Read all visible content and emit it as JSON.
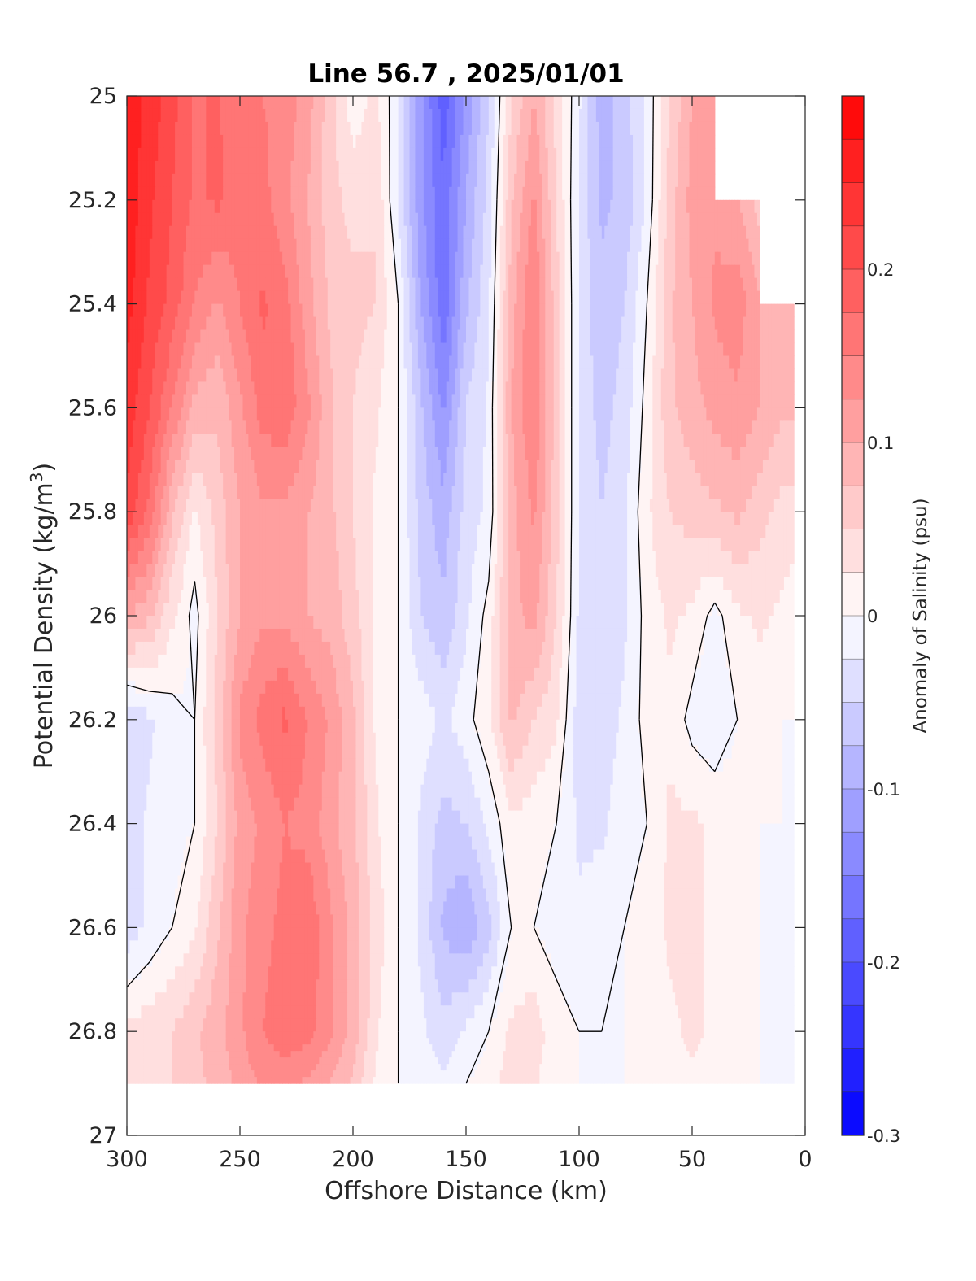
{
  "chart_data": {
    "type": "heatmap",
    "subtype": "filled-contour section",
    "title": "Line 56.7 , 2025/01/01",
    "xlabel": "Offshore Distance (km)",
    "ylabel_main": "Potential Density (kg/m",
    "ylabel_sup": "3",
    "ylabel_close": ")",
    "colorbar_label": "Anomaly of Salinity (psu)",
    "xlim": [
      300,
      0
    ],
    "x_reversed": true,
    "ylim": [
      25,
      27
    ],
    "y_reversed": true,
    "x_ticks": [
      "300",
      "250",
      "200",
      "150",
      "100",
      "50",
      "0"
    ],
    "x_tick_values": [
      300,
      250,
      200,
      150,
      100,
      50,
      0
    ],
    "y_ticks": [
      "25",
      "25.2",
      "25.4",
      "25.6",
      "25.8",
      "26",
      "26.2",
      "26.4",
      "26.6",
      "26.8",
      "27"
    ],
    "y_tick_values": [
      25,
      25.2,
      25.4,
      25.6,
      25.8,
      26,
      26.2,
      26.4,
      26.6,
      26.8,
      27
    ],
    "colorbar_range": [
      -0.3,
      0.3
    ],
    "colorbar_ticks": [
      "0.2",
      "0.1",
      "0",
      "-0.1",
      "-0.2",
      "-0.3"
    ],
    "colorbar_tick_values": [
      0.2,
      0.1,
      0,
      -0.1,
      -0.2,
      -0.3
    ],
    "colorbar_step": 0.025,
    "colormap": {
      "negative": "#0000ff",
      "zero": "#ffffff",
      "positive": "#ff0000"
    },
    "grid": false,
    "data_extent_y": [
      25,
      26.9
    ],
    "x": [
      300,
      290,
      280,
      270,
      260,
      250,
      240,
      230,
      220,
      210,
      200,
      190,
      180,
      170,
      160,
      150,
      140,
      130,
      120,
      110,
      100,
      90,
      80,
      70,
      60,
      50,
      40,
      30,
      20,
      10,
      5
    ],
    "y": [
      25.0,
      25.2,
      25.4,
      25.6,
      25.8,
      26.0,
      26.2,
      26.4,
      26.6,
      26.8,
      26.9
    ],
    "z": [
      [
        0.27,
        0.24,
        0.21,
        0.17,
        0.18,
        0.15,
        0.15,
        0.14,
        0.11,
        0.06,
        0.01,
        0.03,
        -0.02,
        -0.12,
        -0.19,
        -0.12,
        -0.05,
        0.05,
        0.1,
        0.04,
        -0.02,
        -0.09,
        -0.06,
        -0.02,
        0.05,
        0.1,
        0.11,
        null,
        null,
        null,
        null
      ],
      [
        0.27,
        0.23,
        0.2,
        0.17,
        0.18,
        0.16,
        0.16,
        0.13,
        0.1,
        0.06,
        0.04,
        0.05,
        -0.03,
        -0.12,
        -0.17,
        -0.1,
        -0.04,
        0.07,
        0.13,
        0.05,
        -0.03,
        -0.08,
        -0.07,
        -0.02,
        0.06,
        0.11,
        0.12,
        0.1,
        0.06,
        null,
        null
      ],
      [
        0.26,
        0.22,
        0.19,
        0.15,
        0.12,
        0.15,
        0.18,
        0.16,
        0.11,
        0.07,
        0.06,
        0.05,
        0.0,
        -0.1,
        -0.17,
        -0.08,
        -0.03,
        0.09,
        0.15,
        0.06,
        -0.03,
        -0.07,
        -0.05,
        0.0,
        0.07,
        0.1,
        0.13,
        0.14,
        0.1,
        0.08,
        0.08
      ],
      [
        0.24,
        0.2,
        0.15,
        0.09,
        0.08,
        0.12,
        0.16,
        0.17,
        0.13,
        0.08,
        0.05,
        0.03,
        0.0,
        -0.07,
        -0.13,
        -0.05,
        -0.02,
        0.1,
        0.15,
        0.06,
        -0.03,
        -0.06,
        -0.04,
        0.01,
        0.07,
        0.09,
        0.11,
        0.12,
        0.1,
        0.08,
        0.08
      ],
      [
        0.22,
        0.17,
        0.08,
        0.02,
        0.06,
        0.1,
        0.12,
        0.12,
        0.1,
        0.08,
        0.05,
        0.02,
        0.0,
        -0.06,
        -0.09,
        -0.04,
        -0.02,
        0.09,
        0.13,
        0.06,
        -0.03,
        -0.05,
        -0.03,
        0.02,
        0.05,
        0.06,
        0.07,
        0.08,
        0.06,
        0.04,
        0.04
      ],
      [
        0.1,
        0.08,
        0.03,
        -0.01,
        0.05,
        0.1,
        0.12,
        0.12,
        0.1,
        0.09,
        0.06,
        0.02,
        0.0,
        -0.05,
        -0.07,
        -0.03,
        0.01,
        0.09,
        0.11,
        0.05,
        -0.03,
        -0.05,
        -0.03,
        0.01,
        0.03,
        0.02,
        -0.01,
        0.02,
        0.03,
        0.02,
        0.01
      ],
      [
        -0.05,
        -0.03,
        -0.01,
        0.0,
        0.06,
        0.13,
        0.16,
        0.18,
        0.15,
        0.12,
        0.08,
        0.02,
        0.0,
        -0.01,
        -0.03,
        -0.01,
        0.02,
        0.08,
        0.05,
        0.03,
        -0.04,
        -0.04,
        -0.02,
        0.01,
        0.02,
        -0.01,
        -0.02,
        0.0,
        0.01,
        0.0,
        0.0
      ],
      [
        -0.04,
        -0.02,
        -0.01,
        0.0,
        0.05,
        0.11,
        0.13,
        0.15,
        0.14,
        0.11,
        0.08,
        0.03,
        0.0,
        -0.03,
        -0.06,
        -0.05,
        -0.02,
        0.02,
        0.01,
        0.0,
        -0.03,
        -0.03,
        -0.01,
        0.0,
        0.03,
        0.03,
        0.02,
        0.01,
        0.0,
        0.0,
        0.0
      ],
      [
        -0.04,
        -0.02,
        0.0,
        0.02,
        0.07,
        0.12,
        0.14,
        0.16,
        0.17,
        0.13,
        0.09,
        0.04,
        0.0,
        -0.03,
        -0.08,
        -0.1,
        -0.06,
        0.0,
        0.0,
        -0.01,
        -0.02,
        -0.01,
        0.0,
        0.01,
        0.03,
        0.03,
        0.02,
        0.01,
        0.0,
        0.0,
        0.0
      ],
      [
        0.03,
        0.04,
        0.05,
        0.07,
        0.09,
        0.12,
        0.15,
        0.17,
        0.16,
        0.13,
        0.09,
        0.03,
        0.0,
        -0.02,
        -0.04,
        -0.02,
        0.0,
        0.03,
        0.04,
        0.01,
        0.0,
        0.0,
        0.0,
        0.01,
        0.02,
        0.03,
        0.02,
        0.01,
        0.0,
        0.0,
        0.0
      ],
      [
        0.03,
        0.04,
        0.05,
        0.07,
        0.08,
        0.11,
        0.13,
        0.13,
        0.12,
        0.1,
        0.07,
        0.02,
        0.0,
        -0.01,
        -0.02,
        0.0,
        0.01,
        0.04,
        0.03,
        0.0,
        0.0,
        0.0,
        0.0,
        0.01,
        0.02,
        0.02,
        0.01,
        0.0,
        0.0,
        0.0,
        0.0
      ]
    ]
  }
}
